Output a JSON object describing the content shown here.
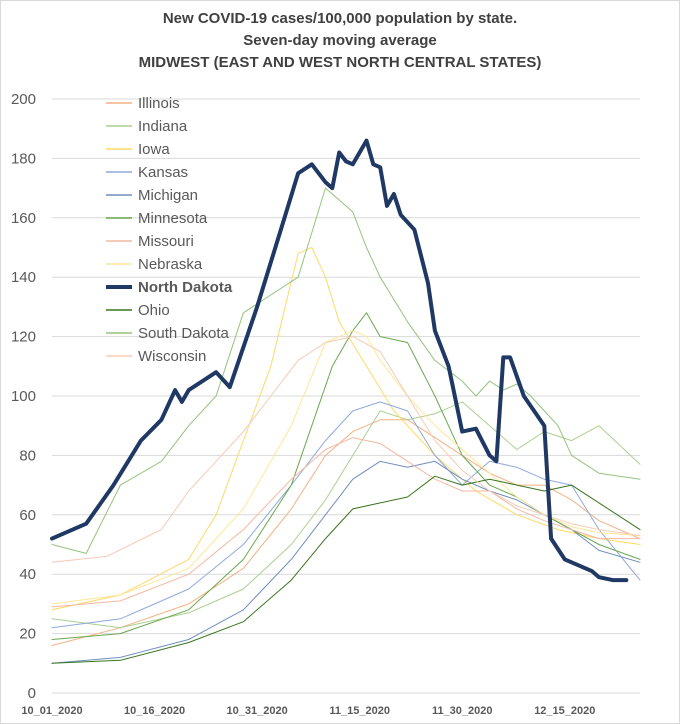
{
  "chart_data": {
    "type": "line",
    "title": "New COVID-19 cases/100,000 population by state.",
    "subtitle": "Seven-day moving average",
    "region": "MIDWEST (EAST AND WEST NORTH CENTRAL STATES)",
    "ylim": [
      0,
      200
    ],
    "y_ticks": [
      "0",
      "20",
      "40",
      "60",
      "80",
      "100",
      "120",
      "140",
      "160",
      "180",
      "200"
    ],
    "x_ticks": [
      "10_01_2020",
      "10_16_2020",
      "10_31_2020",
      "11_15_2020",
      "11_30_2020",
      "12_15_2020"
    ],
    "x_start": "2020-10-01",
    "x_end": "2020-12-26",
    "grid": "horizontal",
    "legend_position": "top-left",
    "series": [
      {
        "name": "Illinois",
        "color": "#f4b183",
        "width": 1,
        "bold": false,
        "values": [
          [
            0,
            16
          ],
          [
            10,
            22
          ],
          [
            20,
            30
          ],
          [
            28,
            42
          ],
          [
            35,
            62
          ],
          [
            40,
            80
          ],
          [
            44,
            88
          ],
          [
            48,
            92
          ],
          [
            52,
            92
          ],
          [
            56,
            86
          ],
          [
            60,
            80
          ],
          [
            64,
            74
          ],
          [
            68,
            70
          ],
          [
            72,
            70
          ],
          [
            76,
            65
          ],
          [
            80,
            58
          ],
          [
            86,
            52
          ]
        ]
      },
      {
        "name": "Indiana",
        "color": "#a9d18e",
        "width": 1,
        "bold": false,
        "values": [
          [
            0,
            25
          ],
          [
            10,
            22
          ],
          [
            20,
            27
          ],
          [
            28,
            35
          ],
          [
            35,
            50
          ],
          [
            40,
            65
          ],
          [
            44,
            80
          ],
          [
            48,
            95
          ],
          [
            52,
            92
          ],
          [
            56,
            94
          ],
          [
            60,
            98
          ],
          [
            64,
            90
          ],
          [
            68,
            82
          ],
          [
            72,
            88
          ],
          [
            76,
            85
          ],
          [
            80,
            90
          ],
          [
            86,
            77
          ]
        ]
      },
      {
        "name": "Iowa",
        "color": "#ffd966",
        "width": 1,
        "bold": false,
        "values": [
          [
            0,
            28
          ],
          [
            10,
            33
          ],
          [
            20,
            45
          ],
          [
            24,
            60
          ],
          [
            28,
            85
          ],
          [
            32,
            110
          ],
          [
            36,
            148
          ],
          [
            38,
            150
          ],
          [
            40,
            140
          ],
          [
            42,
            125
          ],
          [
            46,
            110
          ],
          [
            50,
            95
          ],
          [
            56,
            80
          ],
          [
            62,
            68
          ],
          [
            68,
            60
          ],
          [
            74,
            55
          ],
          [
            80,
            52
          ],
          [
            86,
            50
          ]
        ]
      },
      {
        "name": "Kansas",
        "color": "#8faadc",
        "width": 1,
        "bold": false,
        "values": [
          [
            0,
            22
          ],
          [
            10,
            25
          ],
          [
            20,
            35
          ],
          [
            28,
            50
          ],
          [
            35,
            70
          ],
          [
            40,
            85
          ],
          [
            44,
            95
          ],
          [
            48,
            98
          ],
          [
            52,
            95
          ],
          [
            56,
            80
          ],
          [
            60,
            70
          ],
          [
            64,
            78
          ],
          [
            68,
            76
          ],
          [
            72,
            72
          ],
          [
            76,
            70
          ],
          [
            80,
            55
          ],
          [
            86,
            38
          ]
        ]
      },
      {
        "name": "Michigan",
        "color": "#6f8fbf",
        "width": 1,
        "bold": false,
        "values": [
          [
            0,
            10
          ],
          [
            10,
            12
          ],
          [
            20,
            18
          ],
          [
            28,
            28
          ],
          [
            35,
            45
          ],
          [
            40,
            60
          ],
          [
            44,
            72
          ],
          [
            48,
            78
          ],
          [
            52,
            76
          ],
          [
            56,
            78
          ],
          [
            60,
            72
          ],
          [
            64,
            68
          ],
          [
            68,
            65
          ],
          [
            72,
            60
          ],
          [
            76,
            55
          ],
          [
            80,
            48
          ],
          [
            86,
            44
          ]
        ]
      },
      {
        "name": "Minnesota",
        "color": "#6aa84f",
        "width": 1,
        "bold": false,
        "values": [
          [
            0,
            18
          ],
          [
            10,
            20
          ],
          [
            20,
            28
          ],
          [
            28,
            45
          ],
          [
            35,
            70
          ],
          [
            38,
            90
          ],
          [
            41,
            110
          ],
          [
            44,
            122
          ],
          [
            46,
            128
          ],
          [
            48,
            120
          ],
          [
            52,
            118
          ],
          [
            56,
            100
          ],
          [
            60,
            80
          ],
          [
            64,
            70
          ],
          [
            68,
            66
          ],
          [
            72,
            60
          ],
          [
            76,
            55
          ],
          [
            80,
            50
          ],
          [
            86,
            45
          ]
        ]
      },
      {
        "name": "Missouri",
        "color": "#f4b8a2",
        "width": 1,
        "bold": false,
        "values": [
          [
            0,
            29
          ],
          [
            10,
            31
          ],
          [
            20,
            40
          ],
          [
            28,
            55
          ],
          [
            35,
            72
          ],
          [
            40,
            82
          ],
          [
            44,
            86
          ],
          [
            48,
            84
          ],
          [
            52,
            78
          ],
          [
            56,
            72
          ],
          [
            60,
            68
          ],
          [
            64,
            68
          ],
          [
            68,
            62
          ],
          [
            72,
            58
          ],
          [
            76,
            55
          ],
          [
            80,
            52
          ],
          [
            86,
            52
          ]
        ]
      },
      {
        "name": "Nebraska",
        "color": "#ffe699",
        "width": 1,
        "bold": false,
        "values": [
          [
            0,
            30
          ],
          [
            10,
            33
          ],
          [
            20,
            42
          ],
          [
            28,
            62
          ],
          [
            35,
            90
          ],
          [
            40,
            118
          ],
          [
            44,
            122
          ],
          [
            46,
            120
          ],
          [
            48,
            112
          ],
          [
            52,
            100
          ],
          [
            56,
            90
          ],
          [
            60,
            82
          ],
          [
            64,
            74
          ],
          [
            68,
            66
          ],
          [
            72,
            60
          ],
          [
            76,
            56
          ],
          [
            80,
            54
          ],
          [
            86,
            53
          ]
        ]
      },
      {
        "name": "North Dakota",
        "color": "#1f3864",
        "width": 4,
        "bold": true,
        "values": [
          [
            0,
            52
          ],
          [
            5,
            57
          ],
          [
            9,
            70
          ],
          [
            13,
            85
          ],
          [
            16,
            92
          ],
          [
            18,
            102
          ],
          [
            19,
            98
          ],
          [
            20,
            102
          ],
          [
            24,
            108
          ],
          [
            26,
            103
          ],
          [
            30,
            130
          ],
          [
            34,
            160
          ],
          [
            36,
            175
          ],
          [
            38,
            178
          ],
          [
            40,
            172
          ],
          [
            41,
            170
          ],
          [
            42,
            182
          ],
          [
            43,
            179
          ],
          [
            44,
            178
          ],
          [
            46,
            186
          ],
          [
            47,
            178
          ],
          [
            48,
            177
          ],
          [
            49,
            164
          ],
          [
            50,
            168
          ],
          [
            51,
            161
          ],
          [
            53,
            156
          ],
          [
            55,
            138
          ],
          [
            56,
            122
          ],
          [
            58,
            110
          ],
          [
            60,
            88
          ],
          [
            62,
            89
          ],
          [
            64,
            80
          ],
          [
            65,
            78
          ],
          [
            66,
            113
          ],
          [
            67,
            113
          ],
          [
            69,
            100
          ],
          [
            72,
            90
          ],
          [
            73,
            52
          ],
          [
            75,
            45
          ],
          [
            77,
            43
          ],
          [
            79,
            41
          ],
          [
            80,
            39
          ],
          [
            82,
            38
          ],
          [
            84,
            38
          ]
        ]
      },
      {
        "name": "Ohio",
        "color": "#38761d",
        "width": 1,
        "bold": false,
        "values": [
          [
            0,
            10
          ],
          [
            10,
            11
          ],
          [
            20,
            17
          ],
          [
            28,
            24
          ],
          [
            35,
            38
          ],
          [
            40,
            52
          ],
          [
            44,
            62
          ],
          [
            48,
            64
          ],
          [
            52,
            66
          ],
          [
            56,
            73
          ],
          [
            60,
            70
          ],
          [
            64,
            72
          ],
          [
            68,
            70
          ],
          [
            72,
            68
          ],
          [
            76,
            70
          ],
          [
            80,
            64
          ],
          [
            86,
            55
          ]
        ]
      },
      {
        "name": "South Dakota",
        "color": "#93c47d",
        "width": 1,
        "bold": false,
        "values": [
          [
            0,
            50
          ],
          [
            5,
            47
          ],
          [
            10,
            70
          ],
          [
            16,
            78
          ],
          [
            20,
            90
          ],
          [
            24,
            100
          ],
          [
            28,
            128
          ],
          [
            32,
            134
          ],
          [
            36,
            140
          ],
          [
            38,
            155
          ],
          [
            40,
            170
          ],
          [
            42,
            166
          ],
          [
            44,
            162
          ],
          [
            46,
            150
          ],
          [
            48,
            140
          ],
          [
            52,
            125
          ],
          [
            56,
            112
          ],
          [
            60,
            105
          ],
          [
            62,
            100
          ],
          [
            64,
            105
          ],
          [
            66,
            102
          ],
          [
            68,
            104
          ],
          [
            70,
            100
          ],
          [
            72,
            95
          ],
          [
            74,
            90
          ],
          [
            76,
            80
          ],
          [
            80,
            74
          ],
          [
            86,
            72
          ]
        ]
      },
      {
        "name": "Wisconsin",
        "color": "#f6cbb4",
        "width": 1,
        "bold": false,
        "values": [
          [
            0,
            44
          ],
          [
            8,
            46
          ],
          [
            16,
            55
          ],
          [
            20,
            68
          ],
          [
            24,
            78
          ],
          [
            28,
            88
          ],
          [
            32,
            100
          ],
          [
            36,
            112
          ],
          [
            40,
            118
          ],
          [
            44,
            120
          ],
          [
            48,
            115
          ],
          [
            52,
            100
          ],
          [
            56,
            85
          ],
          [
            60,
            75
          ],
          [
            64,
            68
          ],
          [
            68,
            63
          ],
          [
            72,
            60
          ],
          [
            76,
            57
          ],
          [
            80,
            55
          ],
          [
            86,
            53
          ]
        ]
      }
    ]
  }
}
